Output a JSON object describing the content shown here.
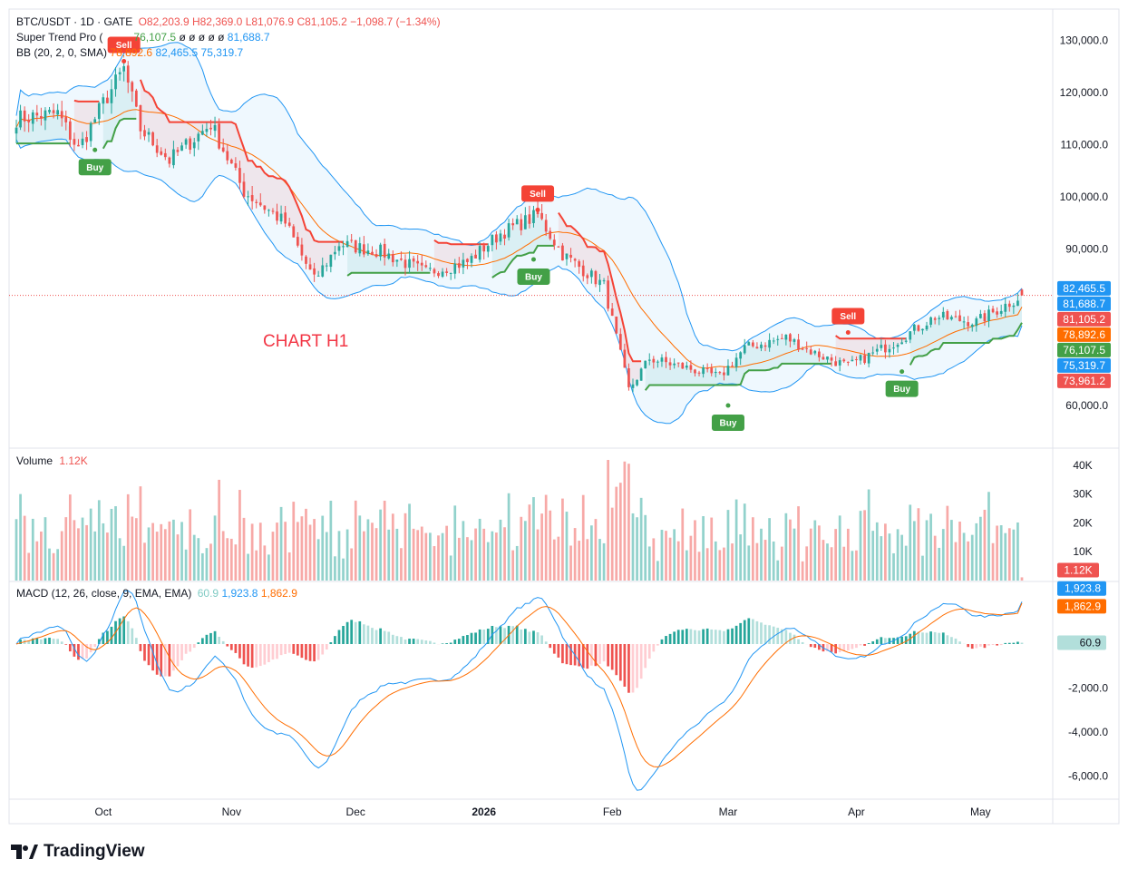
{
  "header": {
    "symbol": "BTC/USDT · 1D · GATE",
    "ohlc": {
      "o": "O82,203.9",
      "h": "H82,369.0",
      "l": "L81,076.9",
      "c": "C81,105.2",
      "chg": "−1,098.7 (−1.34%)"
    },
    "supertrend": {
      "name": "Super Trend Pro (",
      "value": "76,107.5",
      "nulls": "ø ø ø ø ø",
      "value2": "81,688.7"
    },
    "bb": {
      "name": "BB (20, 2, 0, SMA)",
      "basis": "78,892.6",
      "upper": "82,465.5",
      "lower": "75,319.7"
    }
  },
  "volume_header": {
    "name": "Volume",
    "value": "1.12K"
  },
  "macd_header": {
    "name": "MACD (12, 26, close, 9, EMA, EMA)",
    "hist": "60.9",
    "macd": "1,923.8",
    "signal": "1,862.9"
  },
  "annotation": "CHART H1",
  "brand": "TradingView",
  "colors": {
    "up": "#26a69a",
    "down": "#ef5350",
    "st_up": "#43a047",
    "st_down": "#f44336",
    "bb": "#2196f3",
    "basis": "#ff6d00",
    "macd": "#2196f3",
    "signal": "#ff6d00"
  },
  "price_axis": {
    "ticks": [
      "130,000.0",
      "120,000.0",
      "110,000.0",
      "100,000.0",
      "90,000.0",
      "60,000.0"
    ]
  },
  "price_tags": [
    {
      "text": "82,465.5",
      "color": "#2196f3"
    },
    {
      "text": "81,688.7",
      "color": "#2196f3"
    },
    {
      "text": "81,105.2",
      "color": "#ef5350"
    },
    {
      "text": "78,892.6",
      "color": "#ff6d00"
    },
    {
      "text": "76,107.5",
      "color": "#43a047"
    },
    {
      "text": "75,319.7",
      "color": "#2196f3"
    },
    {
      "text": "73,961.2",
      "color": "#ef5350"
    }
  ],
  "volume_axis": {
    "ticks": [
      "40K",
      "30K",
      "20K",
      "10K"
    ],
    "tag": "1.12K"
  },
  "macd_axis": {
    "ticks": [
      "-2,000.0",
      "-4,000.0",
      "-6,000.0"
    ],
    "tags": [
      {
        "text": "1,923.8",
        "color": "#2196f3"
      },
      {
        "text": "1,862.9",
        "color": "#ff6d00"
      },
      {
        "text": "60.9",
        "color": "#b2dfdb",
        "textColor": "#131722"
      }
    ]
  },
  "time_axis": [
    {
      "label": "Oct",
      "bold": false
    },
    {
      "label": "Nov",
      "bold": false
    },
    {
      "label": "Dec",
      "bold": false
    },
    {
      "label": "2026",
      "bold": true
    },
    {
      "label": "Feb",
      "bold": false
    },
    {
      "label": "Mar",
      "bold": false
    },
    {
      "label": "Apr",
      "bold": false
    },
    {
      "label": "May",
      "bold": false
    }
  ],
  "signals": [
    {
      "type": "Sell",
      "date": "2025-10-06",
      "price": 126000
    },
    {
      "type": "Buy",
      "date": "2025-09-29",
      "price": 109000
    },
    {
      "type": "Sell",
      "date": "2026-01-14",
      "price": 97500
    },
    {
      "type": "Buy",
      "date": "2026-01-13",
      "price": 88000
    },
    {
      "type": "Buy",
      "date": "2026-03-01",
      "price": 60000
    },
    {
      "type": "Sell",
      "date": "2026-03-30",
      "price": 74000
    },
    {
      "type": "Buy",
      "date": "2026-04-12",
      "price": 66500
    }
  ],
  "chart_data": {
    "type": "candlestick",
    "title": "BTC/USDT · 1D · GATE",
    "x_range": [
      "2025-09-10",
      "2026-05-11"
    ],
    "ylim": [
      52000,
      136000
    ],
    "close_path": [
      [
        "2025-09-10",
        115000
      ],
      [
        "2025-09-20",
        116000
      ],
      [
        "2025-09-25",
        109000
      ],
      [
        "2025-10-01",
        118000
      ],
      [
        "2025-10-06",
        124500
      ],
      [
        "2025-10-10",
        113000
      ],
      [
        "2025-10-17",
        107000
      ],
      [
        "2025-10-27",
        114000
      ],
      [
        "2025-11-04",
        101000
      ],
      [
        "2025-11-14",
        95000
      ],
      [
        "2025-11-21",
        84000
      ],
      [
        "2025-11-27",
        91000
      ],
      [
        "2025-12-07",
        89500
      ],
      [
        "2025-12-18",
        85500
      ],
      [
        "2025-12-28",
        87500
      ],
      [
        "2026-01-05",
        93000
      ],
      [
        "2026-01-14",
        96500
      ],
      [
        "2026-01-20",
        89000
      ],
      [
        "2026-01-30",
        83000
      ],
      [
        "2026-02-05",
        63000
      ],
      [
        "2026-02-10",
        69000
      ],
      [
        "2026-02-20",
        67000
      ],
      [
        "2026-02-27",
        65500
      ],
      [
        "2026-03-05",
        71000
      ],
      [
        "2026-03-15",
        73000
      ],
      [
        "2026-03-22",
        70000
      ],
      [
        "2026-03-30",
        67500
      ],
      [
        "2026-04-10",
        72000
      ],
      [
        "2026-04-20",
        77000
      ],
      [
        "2026-04-30",
        76000
      ],
      [
        "2026-05-11",
        81105.2
      ]
    ],
    "last": {
      "open": 82203.9,
      "high": 82369.0,
      "low": 81076.9,
      "close": 81105.2
    },
    "bb": {
      "upper": 82465.5,
      "basis": 78892.6,
      "lower": 75319.7
    },
    "supertrend": {
      "value": 76107.5,
      "value2": 81688.7
    },
    "volume": {
      "last": 1120,
      "ylim": [
        0,
        45000
      ]
    },
    "macd": {
      "macd": 1923.8,
      "signal": 1862.9,
      "hist": 60.9,
      "ylim": [
        -7000,
        2800
      ]
    }
  }
}
